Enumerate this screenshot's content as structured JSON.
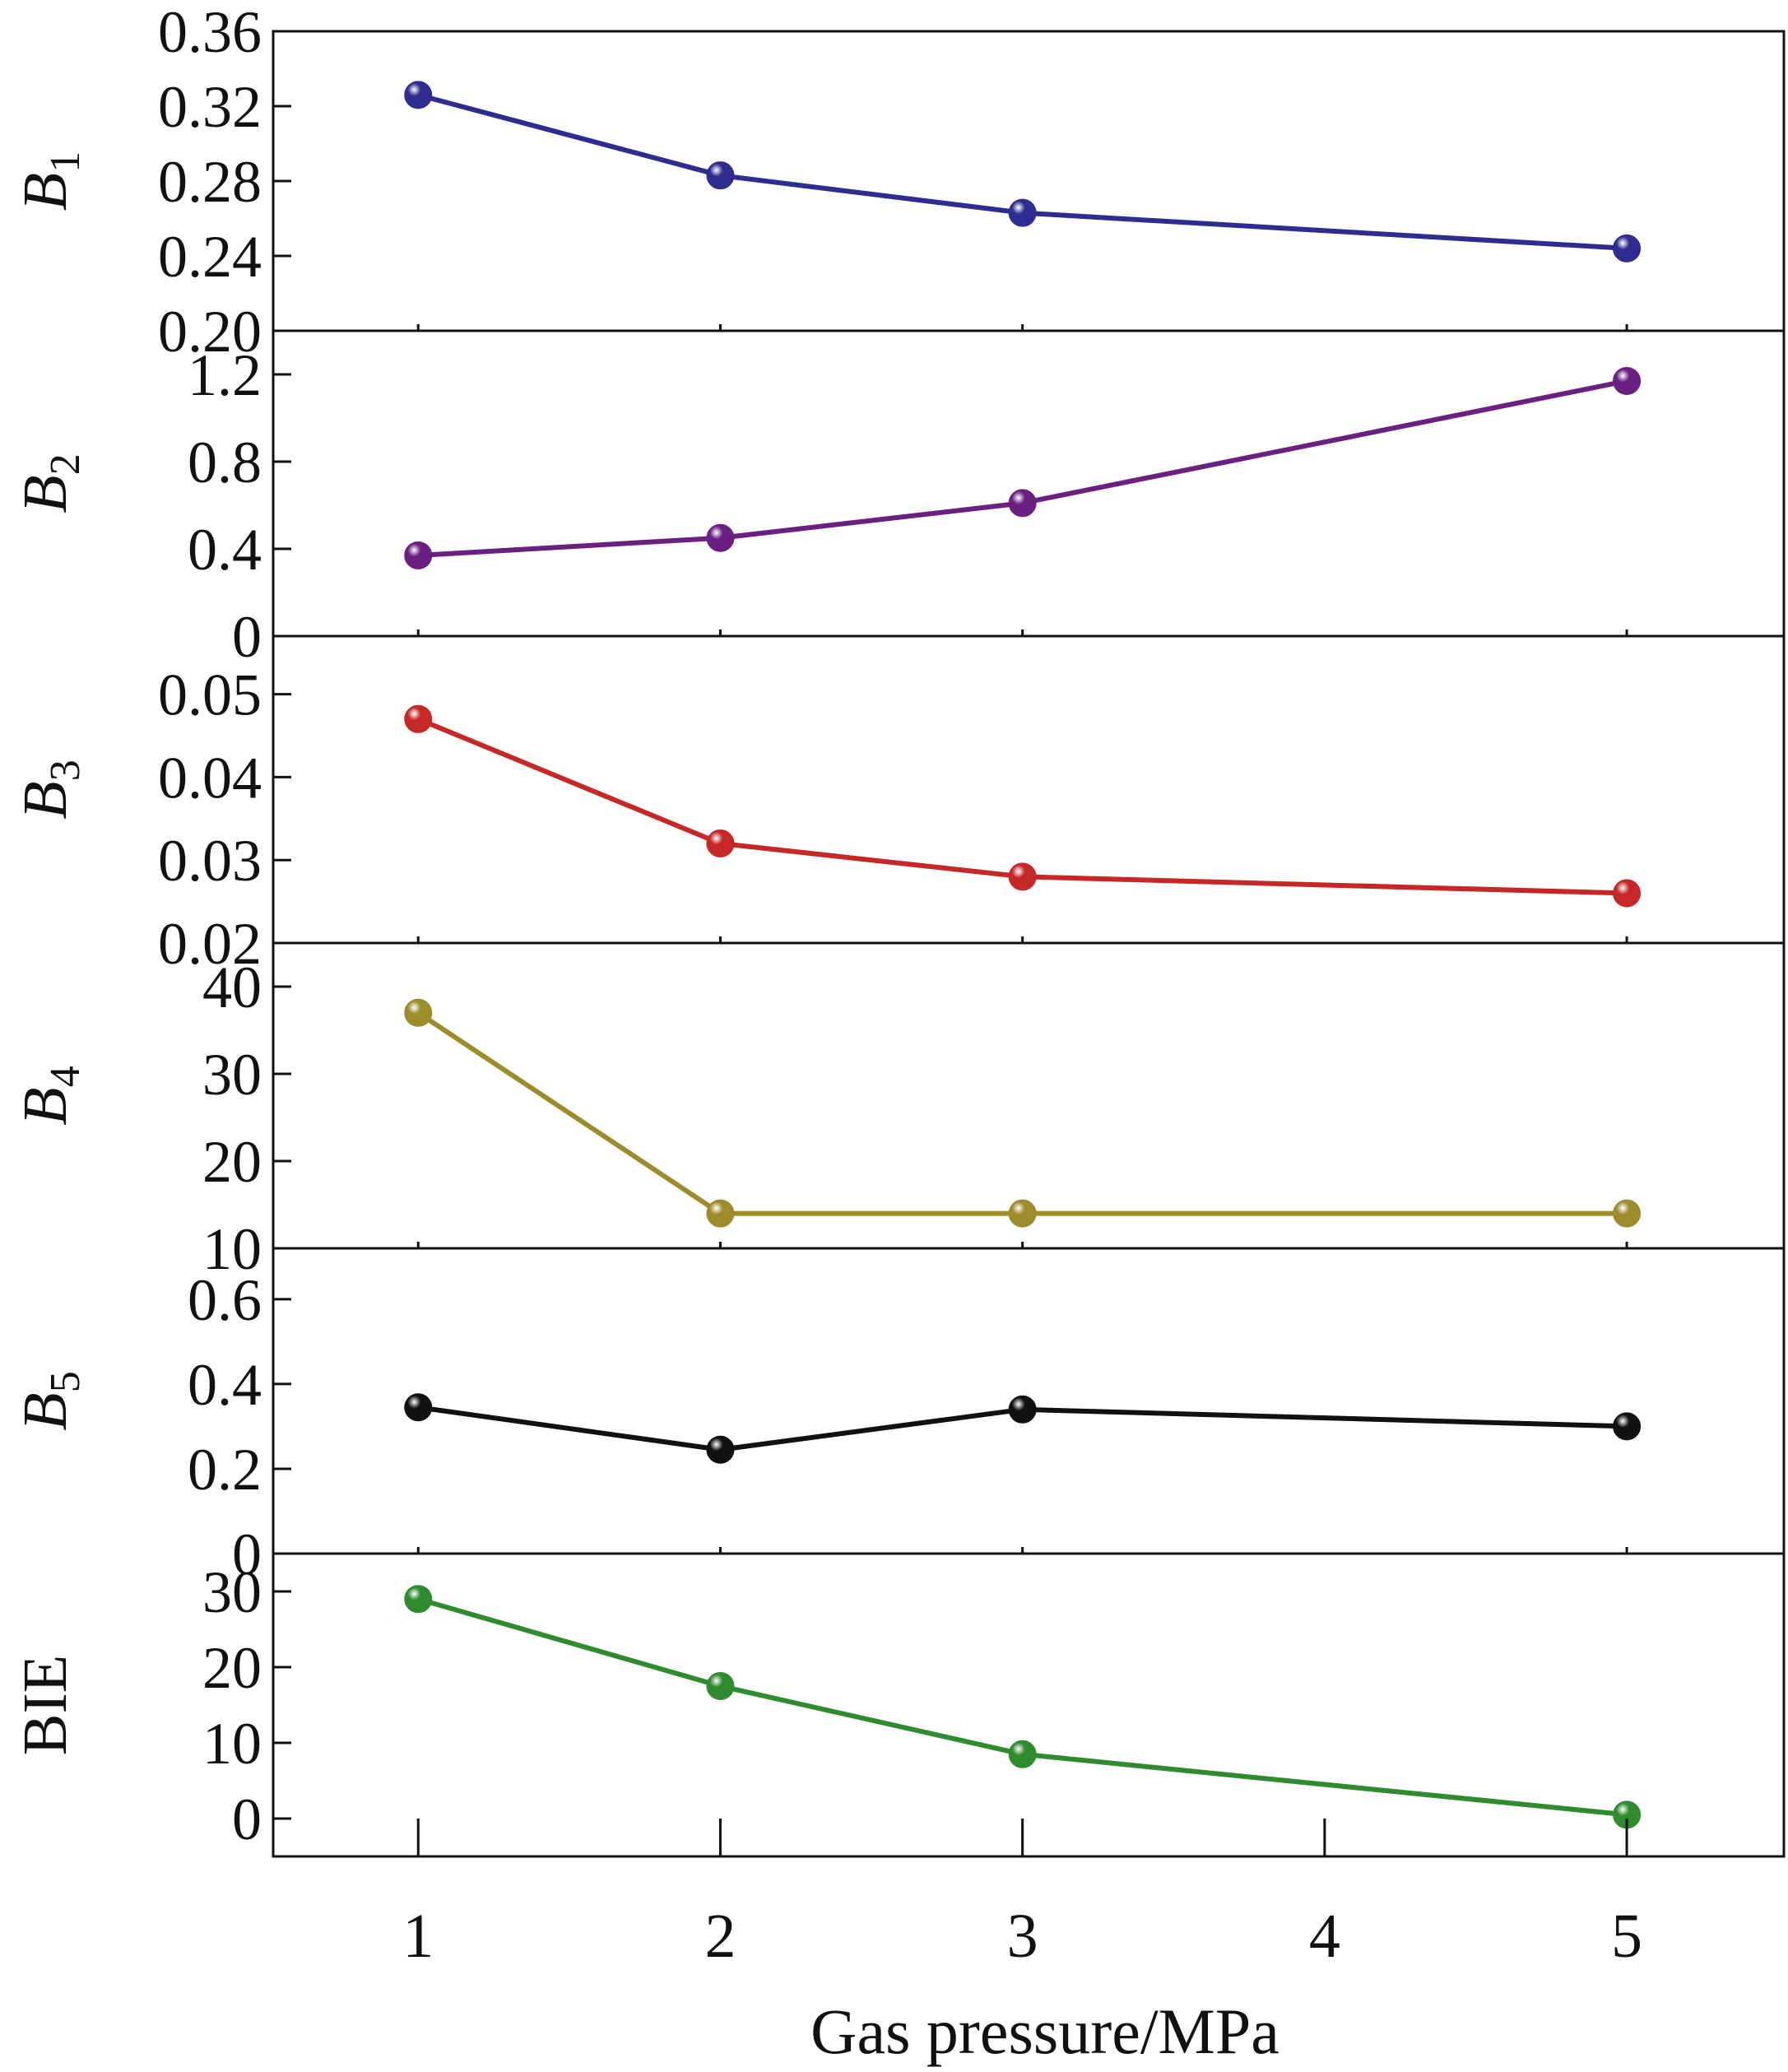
{
  "chart_data": {
    "type": "line",
    "x": [
      1,
      2,
      3,
      5
    ],
    "xticks": [
      1,
      2,
      3,
      4,
      5
    ],
    "xlim": [
      0.52,
      5.52
    ],
    "xlabel": "Gas pressure/MPa",
    "panels": [
      {
        "ylabel": "B",
        "ylabel_sub": "1",
        "italic": true,
        "color": "#2e2d8f",
        "ylim": [
          0.2,
          0.36
        ],
        "yticks": [
          "0.20",
          "0.24",
          "0.28",
          "0.32",
          "0.36"
        ],
        "values": [
          0.326,
          0.283,
          0.263,
          0.244
        ]
      },
      {
        "ylabel": "B",
        "ylabel_sub": "2",
        "italic": true,
        "color": "#6a2081",
        "ylim": [
          0,
          1.4
        ],
        "yticks": [
          "0",
          "0.4",
          "0.8",
          "1.2"
        ],
        "values": [
          0.37,
          0.45,
          0.61,
          1.17
        ]
      },
      {
        "ylabel": "B",
        "ylabel_sub": "3",
        "italic": true,
        "color": "#c62828",
        "ylim": [
          0.02,
          0.057
        ],
        "yticks": [
          "0.02",
          "0.03",
          "0.04",
          "0.05"
        ],
        "values": [
          0.047,
          0.032,
          0.028,
          0.026
        ]
      },
      {
        "ylabel": "B",
        "ylabel_sub": "4",
        "italic": true,
        "color": "#9c8c2c",
        "ylim": [
          10,
          45
        ],
        "yticks": [
          "10",
          "20",
          "30",
          "40"
        ],
        "values": [
          37,
          14,
          14,
          14
        ]
      },
      {
        "ylabel": "B",
        "ylabel_sub": "5",
        "italic": true,
        "color": "#111111",
        "ylim": [
          0,
          0.72
        ],
        "yticks": [
          "0",
          "0.2",
          "0.4",
          "0.6"
        ],
        "values": [
          0.345,
          0.245,
          0.34,
          0.3
        ]
      },
      {
        "ylabel": "BIE",
        "ylabel_sub": "",
        "italic": false,
        "color": "#2e8b2e",
        "ylim": [
          -5,
          35
        ],
        "yticks": [
          "0",
          "10",
          "20",
          "30"
        ],
        "values": [
          29,
          17.5,
          8.5,
          0.5
        ]
      }
    ]
  }
}
